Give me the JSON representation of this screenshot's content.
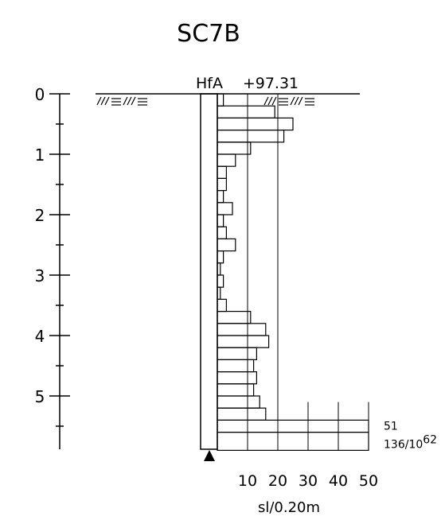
{
  "title": "SC7B",
  "header": {
    "method_code": "HfA",
    "elevation": "+97.31"
  },
  "depth_axis": {
    "min": 0,
    "max": 5.9,
    "major_ticks": [
      0,
      1,
      2,
      3,
      4,
      5
    ],
    "labels": [
      "0",
      "1",
      "2",
      "3",
      "4",
      "5"
    ]
  },
  "x_axis": {
    "ticks": [
      10,
      20,
      30,
      40,
      50
    ],
    "labels": [
      "10",
      "20",
      "30",
      "40",
      "50"
    ],
    "unit_label": "sl/0.20m",
    "max": 50
  },
  "chart_data": {
    "type": "bar",
    "orientation": "horizontal",
    "title": "SC7B",
    "xlabel": "sl/0.20m",
    "ylabel": "",
    "xlim": [
      0,
      50
    ],
    "ylim": [
      0,
      5.9
    ],
    "interval_m": 0.2,
    "series": [
      {
        "values": [
          {
            "top": 0.0,
            "bottom": 0.2,
            "value": 2
          },
          {
            "top": 0.2,
            "bottom": 0.4,
            "value": 19
          },
          {
            "top": 0.4,
            "bottom": 0.6,
            "value": 25
          },
          {
            "top": 0.6,
            "bottom": 0.8,
            "value": 22
          },
          {
            "top": 0.8,
            "bottom": 1.0,
            "value": 11
          },
          {
            "top": 1.0,
            "bottom": 1.2,
            "value": 6
          },
          {
            "top": 1.2,
            "bottom": 1.4,
            "value": 3
          },
          {
            "top": 1.4,
            "bottom": 1.6,
            "value": 3
          },
          {
            "top": 1.6,
            "bottom": 1.8,
            "value": 2
          },
          {
            "top": 1.8,
            "bottom": 2.0,
            "value": 5
          },
          {
            "top": 2.0,
            "bottom": 2.2,
            "value": 2
          },
          {
            "top": 2.2,
            "bottom": 2.4,
            "value": 3
          },
          {
            "top": 2.4,
            "bottom": 2.6,
            "value": 6
          },
          {
            "top": 2.6,
            "bottom": 2.8,
            "value": 2
          },
          {
            "top": 2.8,
            "bottom": 3.0,
            "value": 1
          },
          {
            "top": 3.0,
            "bottom": 3.2,
            "value": 2
          },
          {
            "top": 3.2,
            "bottom": 3.4,
            "value": 1
          },
          {
            "top": 3.4,
            "bottom": 3.6,
            "value": 3
          },
          {
            "top": 3.6,
            "bottom": 3.8,
            "value": 11
          },
          {
            "top": 3.8,
            "bottom": 4.0,
            "value": 16
          },
          {
            "top": 4.0,
            "bottom": 4.2,
            "value": 17
          },
          {
            "top": 4.2,
            "bottom": 4.4,
            "value": 13
          },
          {
            "top": 4.4,
            "bottom": 4.6,
            "value": 12
          },
          {
            "top": 4.6,
            "bottom": 4.8,
            "value": 13
          },
          {
            "top": 4.8,
            "bottom": 5.0,
            "value": 12
          },
          {
            "top": 5.0,
            "bottom": 5.2,
            "value": 14
          },
          {
            "top": 5.2,
            "bottom": 5.4,
            "value": 16
          },
          {
            "top": 5.4,
            "bottom": 5.6,
            "value": 51,
            "label": "51"
          },
          {
            "top": 5.6,
            "bottom": 5.9,
            "value": 50,
            "label": "136/10",
            "label_sup": "62"
          }
        ]
      }
    ],
    "grid": true
  }
}
